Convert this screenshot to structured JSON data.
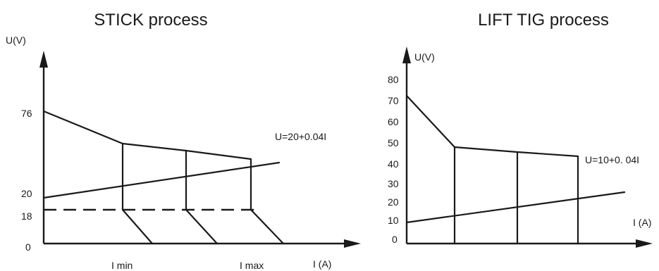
{
  "stick": {
    "title": "STICK process",
    "y_axis_label": "U(V)",
    "x_axis_label": "I (A)",
    "y_ticks": [
      "76",
      "20",
      "18",
      "0"
    ],
    "x_ticks": [
      "I min",
      "I max"
    ],
    "load_line_label": "U=20+0.04I"
  },
  "tig": {
    "title": "LIFT TIG process",
    "y_axis_label": "U(V)",
    "x_axis_label": "I (A)",
    "y_ticks": [
      "80",
      "70",
      "60",
      "50",
      "40",
      "30",
      "20",
      "10",
      "0"
    ],
    "load_line_label": "U=10+0. 04I"
  },
  "colors": {
    "ink": "#1a1a1a",
    "background": "#ffffff"
  }
}
